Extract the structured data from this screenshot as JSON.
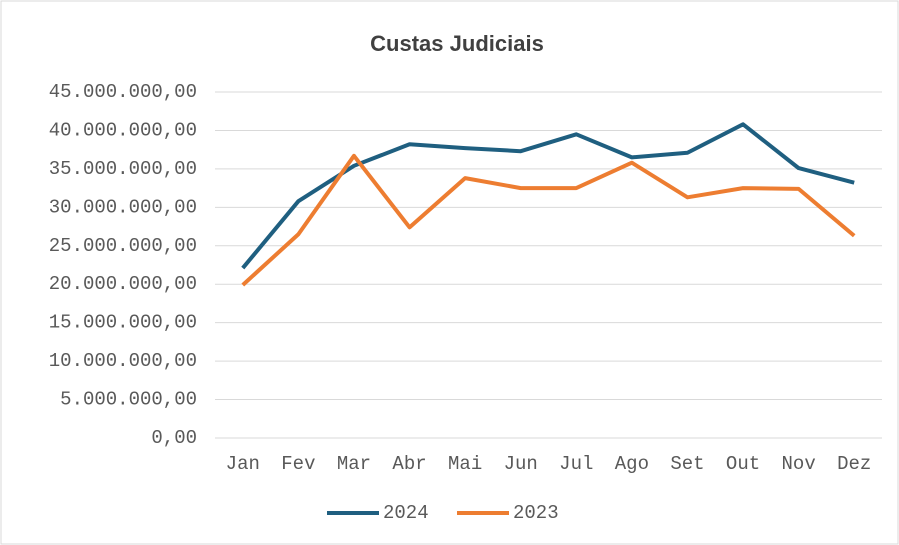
{
  "chart_data": {
    "type": "line",
    "title": "Custas Judiciais",
    "categories": [
      "Jan",
      "Fev",
      "Mar",
      "Abr",
      "Mai",
      "Jun",
      "Jul",
      "Ago",
      "Set",
      "Out",
      "Nov",
      "Dez"
    ],
    "series": [
      {
        "name": "2024",
        "color": "#1f5f80",
        "values": [
          22100000,
          30800000,
          35400000,
          38200000,
          37700000,
          37300000,
          39500000,
          36500000,
          37100000,
          40800000,
          35100000,
          33200000
        ]
      },
      {
        "name": "2023",
        "color": "#ed7d31",
        "values": [
          19900000,
          26500000,
          36700000,
          27400000,
          33800000,
          32500000,
          32500000,
          35800000,
          31300000,
          32500000,
          32400000,
          26300000
        ]
      }
    ],
    "ylim": [
      0,
      45000000
    ],
    "yticks": [
      {
        "value": 0,
        "label": "0,00"
      },
      {
        "value": 5000000,
        "label": "5.000.000,00"
      },
      {
        "value": 10000000,
        "label": "10.000.000,00"
      },
      {
        "value": 15000000,
        "label": "15.000.000,00"
      },
      {
        "value": 20000000,
        "label": "20.000.000,00"
      },
      {
        "value": 25000000,
        "label": "25.000.000,00"
      },
      {
        "value": 30000000,
        "label": "30.000.000,00"
      },
      {
        "value": 35000000,
        "label": "35.000.000,00"
      },
      {
        "value": 40000000,
        "label": "40.000.000,00"
      },
      {
        "value": 45000000,
        "label": "45.000.000,00"
      }
    ],
    "grid": true,
    "legend": "bottom"
  }
}
